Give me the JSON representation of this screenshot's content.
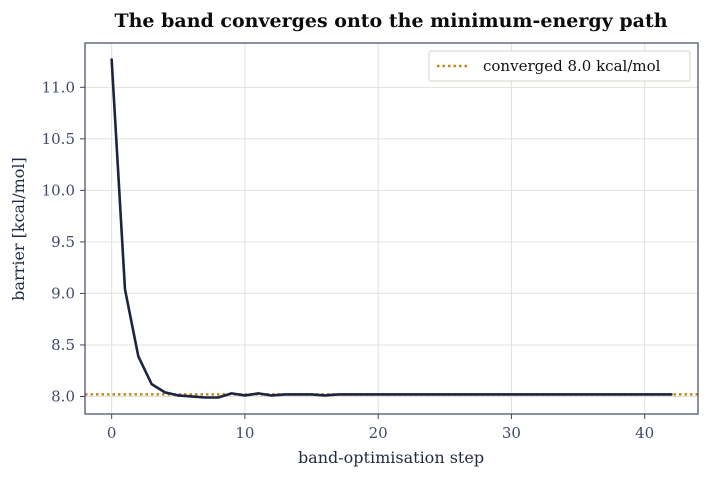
{
  "chart_data": {
    "type": "line",
    "title": "The band converges onto the minimum-energy path",
    "xlabel": "band-optimisation step",
    "ylabel": "barrier  [kcal/mol]",
    "xlim": [
      -2,
      44
    ],
    "ylim": [
      7.83,
      11.43
    ],
    "xticks": [
      0,
      10,
      20,
      30,
      40
    ],
    "yticks": [
      8.0,
      8.5,
      9.0,
      9.5,
      10.0,
      10.5,
      11.0
    ],
    "grid": true,
    "legend_position": "top-right",
    "series": [
      {
        "color": "#1b2440",
        "x": [
          0,
          1,
          2,
          3,
          4,
          5,
          6,
          7,
          8,
          9,
          10,
          11,
          12,
          13,
          14,
          15,
          16,
          17,
          18,
          19,
          20,
          21,
          22,
          23,
          24,
          25,
          26,
          27,
          28,
          29,
          30,
          31,
          32,
          33,
          34,
          35,
          36,
          37,
          38,
          39,
          40,
          41,
          42
        ],
        "values": [
          11.27,
          9.04,
          8.39,
          8.12,
          8.04,
          8.01,
          8.0,
          7.99,
          7.99,
          8.03,
          8.01,
          8.03,
          8.01,
          8.02,
          8.02,
          8.02,
          8.01,
          8.02,
          8.02,
          8.02,
          8.02,
          8.02,
          8.02,
          8.02,
          8.02,
          8.02,
          8.02,
          8.02,
          8.02,
          8.02,
          8.02,
          8.02,
          8.02,
          8.02,
          8.02,
          8.02,
          8.02,
          8.02,
          8.02,
          8.02,
          8.02,
          8.02,
          8.02
        ]
      }
    ],
    "reference_line": {
      "name": "converged 8.0 kcal/mol",
      "y": 8.02,
      "style": "dotted",
      "color": "#c8841c"
    }
  }
}
